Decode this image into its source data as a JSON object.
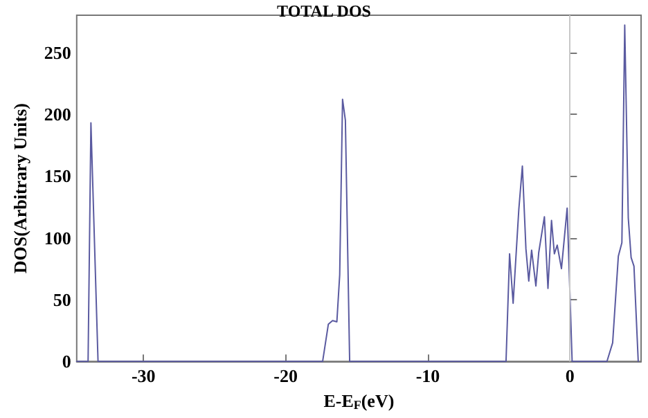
{
  "chart_data": {
    "type": "line",
    "title": "TOTAL DOS",
    "xlabel": "E-E$_{F}$(eV)",
    "ylabel": "DOS(Arbitrary Units)",
    "x": [
      -34.7,
      -33.9,
      -33.7,
      -33.2,
      -17.4,
      -17.0,
      -16.7,
      -16.4,
      -16.2,
      -16.0,
      -15.8,
      -15.5,
      -4.5,
      -4.25,
      -4.0,
      -3.6,
      -3.35,
      -3.1,
      -2.9,
      -2.7,
      -2.4,
      -2.2,
      -1.8,
      -1.55,
      -1.3,
      -1.1,
      -0.9,
      -0.6,
      -0.2,
      0.15,
      2.6,
      3.0,
      3.4,
      3.65,
      3.85,
      4.1,
      4.3,
      4.5,
      4.8
    ],
    "series": [
      {
        "color": "#5a5aa0",
        "values": [
          0,
          0,
          193,
          0,
          0,
          30,
          33,
          32,
          70,
          212,
          195,
          0,
          0,
          87,
          47,
          123,
          158,
          91,
          65,
          90,
          61,
          88,
          117,
          59,
          114,
          87,
          94,
          75,
          124,
          0,
          0,
          15,
          85,
          96,
          272,
          116,
          84,
          77,
          0
        ]
      }
    ],
    "xlim": [
      -34.7,
      5
    ],
    "xticks": [
      -30,
      -20,
      -10,
      0
    ],
    "ylim": [
      0,
      280
    ],
    "yticks": [
      0,
      50,
      100,
      150,
      200,
      250
    ],
    "grid": false,
    "marker": "none",
    "line_style": "solid",
    "ref_lines": [
      {
        "axis": "x",
        "value": 0,
        "color": "#c8c8c8"
      }
    ]
  }
}
